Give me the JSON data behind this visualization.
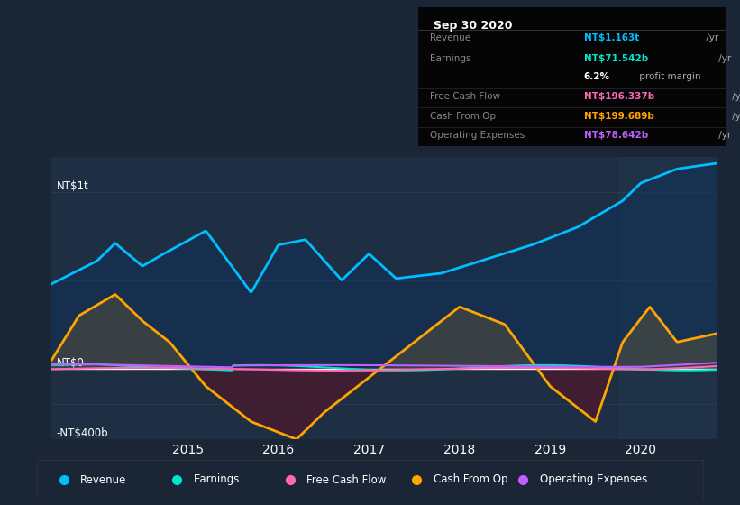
{
  "bg_color": "#1a2535",
  "plot_bg_color": "#1e2f44",
  "title_box": {
    "date": "Sep 30 2020",
    "rows": [
      {
        "label": "Revenue",
        "value": "NT$1.163t",
        "unit": " /yr",
        "value_color": "#00bfff"
      },
      {
        "label": "Earnings",
        "value": "NT$71.542b",
        "unit": " /yr",
        "value_color": "#00e5cc"
      },
      {
        "label": "",
        "value": "6.2%",
        "unit": " profit margin",
        "value_color": "#ffffff"
      },
      {
        "label": "Free Cash Flow",
        "value": "NT$196.337b",
        "unit": " /yr",
        "value_color": "#ff69b4"
      },
      {
        "label": "Cash From Op",
        "value": "NT$199.689b",
        "unit": " /yr",
        "value_color": "#ffa500"
      },
      {
        "label": "Operating Expenses",
        "value": "NT$78.642b",
        "unit": " /yr",
        "value_color": "#bf5fff"
      }
    ]
  },
  "ylabel_top": "NT$1t",
  "ylabel_zero": "NT$0",
  "ylabel_bottom": "-NT$400b",
  "x_labels": [
    "2015",
    "2016",
    "2017",
    "2018",
    "2019",
    "2020"
  ],
  "legend": [
    {
      "label": "Revenue",
      "color": "#00bfff"
    },
    {
      "label": "Earnings",
      "color": "#00e5cc"
    },
    {
      "label": "Free Cash Flow",
      "color": "#ff69b4"
    },
    {
      "label": "Cash From Op",
      "color": "#ffa500"
    },
    {
      "label": "Operating Expenses",
      "color": "#bf5fff"
    }
  ],
  "colors": {
    "revenue": "#00bfff",
    "earnings": "#00e5cc",
    "cashflow": "#ff69b4",
    "cashfromop": "#ffa500",
    "opex": "#bf5fff"
  },
  "xmin": 2013.5,
  "xmax": 2020.85,
  "ymin": -400,
  "ymax": 1200
}
